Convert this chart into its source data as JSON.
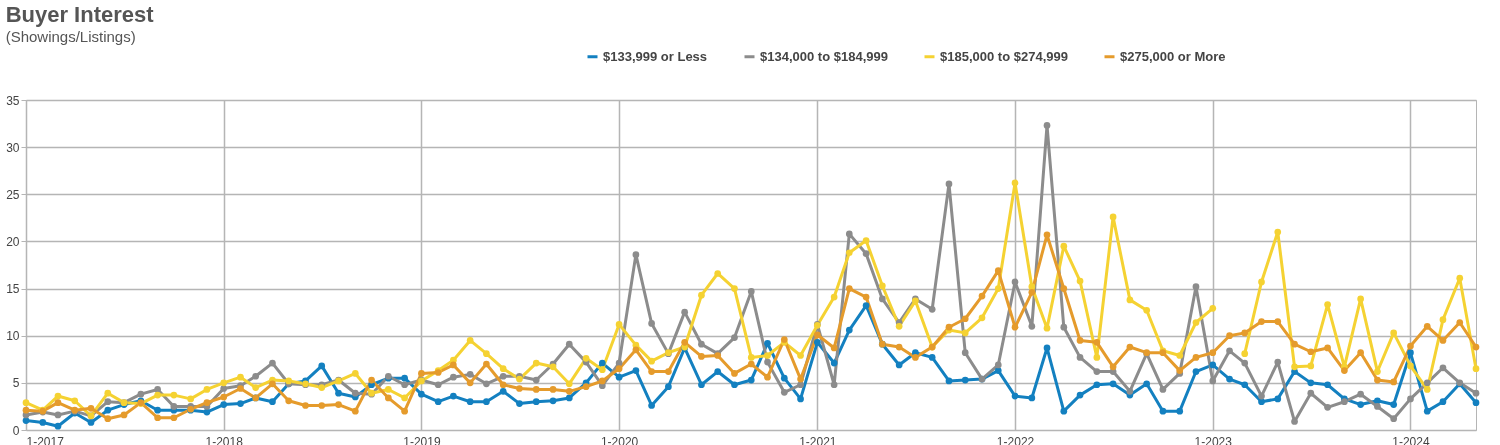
{
  "chart_data": {
    "type": "line",
    "title": "Buyer Interest",
    "subtitle": "(Showings/Listings)",
    "x": [
      "2017-01",
      "2017-02",
      "2017-03",
      "2017-04",
      "2017-05",
      "2017-06",
      "2017-07",
      "2017-08",
      "2017-09",
      "2017-10",
      "2017-11",
      "2017-12",
      "2018-01",
      "2018-02",
      "2018-03",
      "2018-04",
      "2018-05",
      "2018-06",
      "2018-07",
      "2018-08",
      "2018-09",
      "2018-10",
      "2018-11",
      "2018-12",
      "2019-01",
      "2019-02",
      "2019-03",
      "2019-04",
      "2019-05",
      "2019-06",
      "2019-07",
      "2019-08",
      "2019-09",
      "2019-10",
      "2019-11",
      "2019-12",
      "2020-01",
      "2020-02",
      "2020-03",
      "2020-04",
      "2020-05",
      "2020-06",
      "2020-07",
      "2020-08",
      "2020-09",
      "2020-10",
      "2020-11",
      "2020-12",
      "2021-01",
      "2021-02",
      "2021-03",
      "2021-04",
      "2021-05",
      "2021-06",
      "2021-07",
      "2021-08",
      "2021-09",
      "2021-10",
      "2021-11",
      "2021-12",
      "2022-01",
      "2022-02",
      "2022-03",
      "2022-04",
      "2022-05",
      "2022-06",
      "2022-07",
      "2022-08",
      "2022-09",
      "2022-10",
      "2022-11",
      "2022-12",
      "2023-01",
      "2023-02",
      "2023-03",
      "2023-04",
      "2023-05",
      "2023-06",
      "2023-07",
      "2023-08",
      "2023-09",
      "2023-10",
      "2023-11",
      "2023-12",
      "2024-01",
      "2024-02",
      "2024-03",
      "2024-04",
      "2024-05"
    ],
    "series": [
      {
        "name": "$133,999 or Less",
        "color": "#1380c0",
        "values": [
          1.0,
          0.8,
          0.4,
          1.8,
          0.8,
          2.1,
          2.7,
          3.1,
          2.1,
          2.1,
          2.1,
          1.9,
          2.7,
          2.8,
          3.4,
          3.0,
          4.9,
          5.2,
          6.8,
          3.9,
          3.5,
          4.8,
          5.5,
          5.5,
          3.8,
          3.0,
          3.6,
          3.0,
          3.0,
          4.1,
          2.8,
          3.0,
          3.1,
          3.4,
          5.0,
          7.1,
          5.6,
          6.3,
          2.6,
          4.6,
          8.7,
          4.8,
          6.2,
          4.8,
          5.3,
          9.2,
          5.5,
          3.3,
          9.3,
          7.1,
          10.6,
          13.2,
          9.1,
          6.9,
          8.2,
          7.7,
          5.2,
          5.3,
          5.4,
          6.3,
          3.6,
          3.4,
          8.7,
          2.0,
          3.7,
          4.8,
          4.9,
          3.7,
          4.9,
          2.0,
          2.0,
          6.2,
          6.9,
          5.4,
          4.8,
          3.0,
          3.3,
          6.2,
          5.0,
          4.8,
          3.3,
          2.7,
          3.1,
          2.7,
          8.2,
          2.0,
          3.0,
          4.9,
          2.9
        ]
      },
      {
        "name": "$134,000 to $184,999",
        "color": "#8c8c8c",
        "values": [
          1.6,
          1.9,
          1.6,
          2.0,
          1.5,
          3.0,
          2.9,
          3.8,
          4.3,
          2.5,
          2.5,
          2.5,
          4.4,
          4.7,
          5.7,
          7.1,
          4.9,
          4.8,
          4.8,
          5.3,
          3.9,
          3.8,
          5.7,
          4.8,
          5.3,
          4.8,
          5.6,
          5.9,
          4.9,
          5.7,
          5.7,
          5.3,
          7.0,
          9.1,
          7.2,
          4.7,
          7.1,
          18.6,
          11.3,
          8.1,
          12.5,
          9.1,
          8.1,
          9.8,
          14.7,
          7.2,
          4.0,
          4.8,
          11.2,
          4.8,
          20.8,
          18.7,
          13.9,
          11.4,
          13.9,
          12.8,
          26.1,
          8.2,
          5.4,
          6.9,
          15.7,
          11.0,
          32.3,
          10.9,
          7.7,
          6.2,
          6.2,
          4.1,
          8.1,
          4.3,
          6.0,
          15.2,
          5.2,
          8.4,
          7.1,
          3.6,
          7.2,
          0.9,
          3.9,
          2.4,
          3.0,
          3.8,
          2.5,
          1.2,
          3.3,
          5.0,
          6.6,
          5.0,
          3.9
        ]
      },
      {
        "name": "$185,000 to $274,999",
        "color": "#f5d232",
        "values": [
          2.9,
          2.1,
          3.6,
          3.1,
          1.5,
          3.9,
          2.9,
          2.8,
          3.7,
          3.7,
          3.3,
          4.3,
          5.0,
          5.6,
          4.5,
          5.3,
          5.2,
          4.9,
          4.5,
          5.2,
          6.0,
          3.9,
          4.3,
          3.4,
          5.2,
          6.3,
          7.4,
          9.5,
          8.1,
          6.5,
          5.4,
          7.1,
          6.7,
          4.9,
          7.6,
          6.4,
          11.2,
          9.0,
          7.3,
          8.2,
          8.8,
          14.3,
          16.6,
          15.0,
          7.7,
          7.9,
          9.3,
          7.9,
          11.1,
          14.1,
          18.8,
          20.1,
          15.3,
          11.0,
          13.7,
          8.8,
          10.6,
          10.3,
          11.9,
          15.0,
          26.2,
          15.2,
          10.8,
          19.5,
          15.8,
          7.7,
          22.6,
          13.8,
          12.7,
          8.4,
          7.9,
          11.4,
          12.9,
          null,
          8.1,
          15.7,
          21.0,
          6.7,
          6.8,
          13.3,
          6.7,
          13.9,
          6.2,
          10.3,
          6.8,
          4.3,
          11.7,
          16.1,
          6.5
        ]
      },
      {
        "name": "$275,000 or More",
        "color": "#e59b2c",
        "values": [
          2.1,
          2.0,
          2.9,
          2.1,
          2.3,
          1.2,
          1.6,
          2.9,
          1.3,
          1.3,
          2.2,
          2.9,
          3.5,
          4.4,
          3.4,
          4.9,
          3.1,
          2.6,
          2.6,
          2.7,
          2.0,
          5.3,
          3.4,
          2.0,
          6.0,
          6.1,
          6.9,
          5.0,
          7.0,
          4.8,
          4.4,
          4.3,
          4.3,
          4.1,
          4.6,
          5.2,
          6.5,
          8.5,
          6.2,
          6.2,
          9.3,
          7.8,
          7.9,
          6.0,
          7.0,
          5.6,
          9.6,
          5.4,
          10.1,
          8.7,
          15.0,
          14.1,
          9.1,
          8.8,
          7.7,
          8.8,
          10.9,
          11.8,
          14.2,
          16.9,
          10.9,
          14.6,
          20.7,
          15.0,
          9.5,
          9.3,
          6.7,
          8.8,
          8.2,
          8.2,
          6.3,
          7.7,
          8.2,
          10.0,
          10.3,
          11.5,
          11.5,
          9.1,
          8.3,
          8.7,
          6.3,
          8.2,
          5.3,
          5.1,
          8.9,
          11.0,
          9.5,
          11.4,
          8.8
        ]
      }
    ],
    "xlim": [
      "2017-01",
      "2024-05"
    ],
    "xticks": [
      {
        "value": "2017-01",
        "label": "1-2017"
      },
      {
        "value": "2018-01",
        "label": "1-2018"
      },
      {
        "value": "2019-01",
        "label": "1-2019"
      },
      {
        "value": "2020-01",
        "label": "1-2020"
      },
      {
        "value": "2021-01",
        "label": "1-2021"
      },
      {
        "value": "2022-01",
        "label": "1-2022"
      },
      {
        "value": "2023-01",
        "label": "1-2023"
      },
      {
        "value": "2024-01",
        "label": "1-2024"
      }
    ],
    "ylim": [
      0,
      35
    ],
    "yticks": [
      0,
      5,
      10,
      15,
      20,
      25,
      30,
      35
    ],
    "grid": true,
    "legend": "top right",
    "marker": "circle",
    "line_style": "solid"
  }
}
